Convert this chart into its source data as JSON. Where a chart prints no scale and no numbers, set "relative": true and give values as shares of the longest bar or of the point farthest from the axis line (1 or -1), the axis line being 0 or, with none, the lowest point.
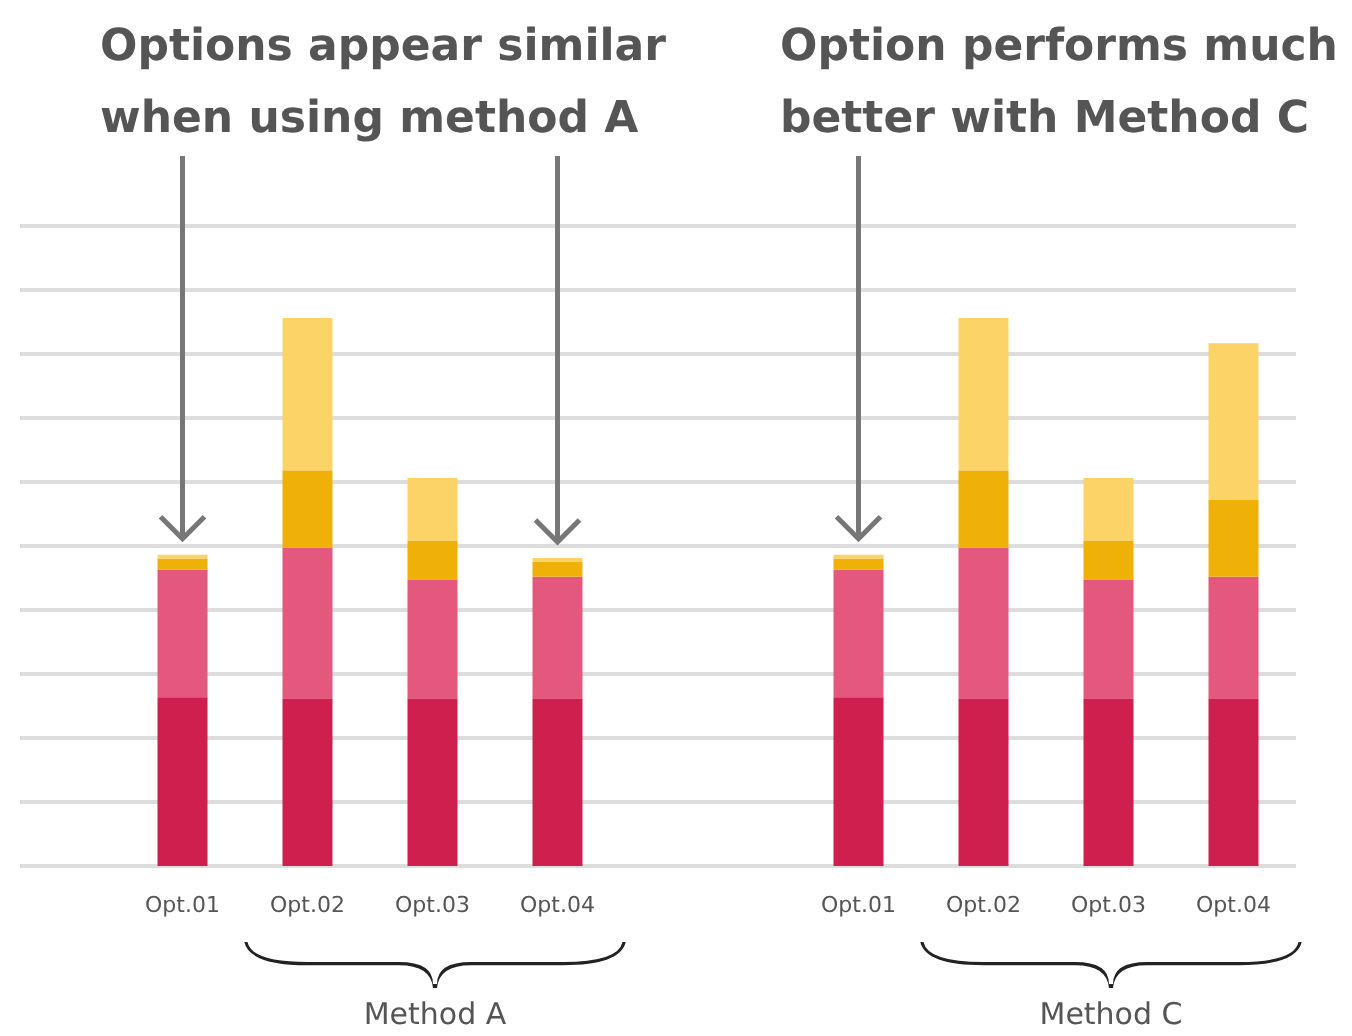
{
  "chart_data": [
    {
      "type": "bar",
      "title": "Options appear similar when using method A",
      "xlabel": "Method A",
      "categories": [
        "Opt.01",
        "Opt.02",
        "Opt.03",
        "Opt.04"
      ],
      "stacked": true,
      "relative": true,
      "grid": true,
      "series": [
        {
          "color": "#cf1f4f",
          "values": [
            0.308,
            0.306,
            0.306,
            0.306
          ]
        },
        {
          "color": "#e5587e",
          "values": [
            0.233,
            0.275,
            0.217,
            0.222
          ]
        },
        {
          "color": "#efb008",
          "values": [
            0.02,
            0.141,
            0.071,
            0.027
          ]
        },
        {
          "color": "#fbd366",
          "values": [
            0.007,
            0.278,
            0.114,
            0.007
          ]
        }
      ]
    },
    {
      "type": "bar",
      "title": "Option performs much better with Method C",
      "xlabel": "Method C",
      "categories": [
        "Opt.01",
        "Opt.02",
        "Opt.03",
        "Opt.04"
      ],
      "stacked": true,
      "relative": true,
      "grid": true,
      "series": [
        {
          "color": "#cf1f4f",
          "values": [
            0.308,
            0.306,
            0.306,
            0.306
          ]
        },
        {
          "color": "#e5587e",
          "values": [
            0.233,
            0.275,
            0.217,
            0.222
          ]
        },
        {
          "color": "#efb008",
          "values": [
            0.02,
            0.141,
            0.071,
            0.14
          ]
        },
        {
          "color": "#fbd366",
          "values": [
            0.007,
            0.278,
            0.114,
            0.286
          ]
        }
      ]
    }
  ]
}
